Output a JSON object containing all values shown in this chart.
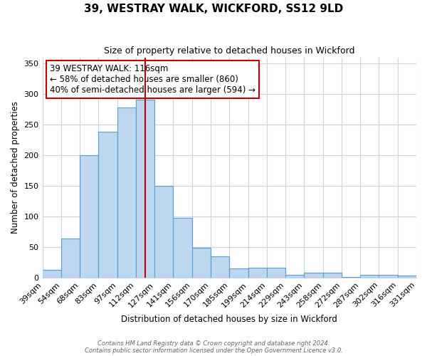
{
  "title": "39, WESTRAY WALK, WICKFORD, SS12 9LD",
  "subtitle": "Size of property relative to detached houses in Wickford",
  "xlabel": "Distribution of detached houses by size in Wickford",
  "ylabel": "Number of detached properties",
  "bar_heights": [
    13,
    64,
    200,
    239,
    278,
    291,
    150,
    97,
    49,
    35,
    15,
    16,
    16,
    4,
    8,
    8,
    1,
    5,
    4,
    3
  ],
  "tick_labels": [
    "39sqm",
    "54sqm",
    "68sqm",
    "83sqm",
    "97sqm",
    "112sqm",
    "127sqm",
    "141sqm",
    "156sqm",
    "170sqm",
    "185sqm",
    "199sqm",
    "214sqm",
    "229sqm",
    "243sqm",
    "258sqm",
    "272sqm",
    "287sqm",
    "302sqm",
    "316sqm",
    "331sqm"
  ],
  "bar_color": "#bdd7ee",
  "bar_edge_color": "#5b9bd5",
  "vline_index": 5.5,
  "vline_color": "#c00000",
  "ylim": [
    0,
    360
  ],
  "yticks": [
    0,
    50,
    100,
    150,
    200,
    250,
    300,
    350
  ],
  "annotation_title": "39 WESTRAY WALK: 116sqm",
  "annotation_line1": "← 58% of detached houses are smaller (860)",
  "annotation_line2": "40% of semi-detached houses are larger (594) →",
  "annotation_box_color": "#ffffff",
  "annotation_box_edge": "#c00000",
  "footer1": "Contains HM Land Registry data © Crown copyright and database right 2024.",
  "footer2": "Contains public sector information licensed under the Open Government Licence v3.0.",
  "background_color": "#ffffff",
  "grid_color": "#c8d4e0"
}
